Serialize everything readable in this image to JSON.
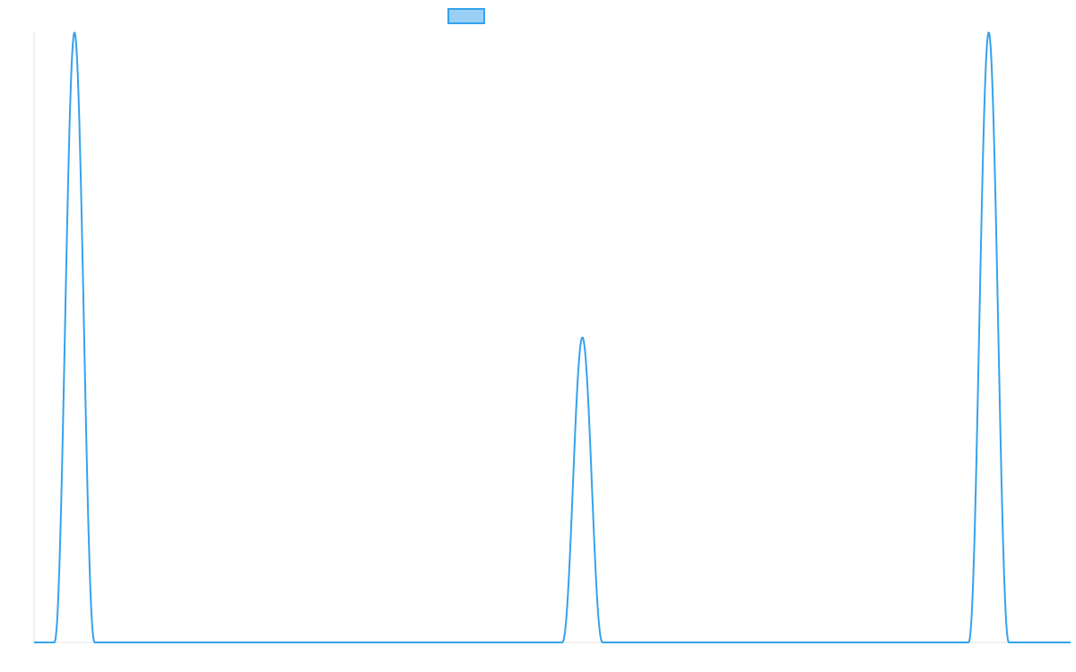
{
  "chart_data": {
    "type": "line",
    "title": "",
    "xlabel": "",
    "ylabel": "",
    "grid": false,
    "legend": {
      "position": "top-center",
      "label": ""
    },
    "xlim": [
      0,
      1
    ],
    "ylim": [
      0,
      1
    ],
    "series": [
      {
        "color": "#36a2eb",
        "fill": "#9ad0f5",
        "peaks": [
          {
            "center": 0.039,
            "height": 1.0,
            "half_width": 0.0195
          },
          {
            "center": 0.529,
            "height": 0.5,
            "half_width": 0.0195
          },
          {
            "center": 0.921,
            "height": 1.0,
            "half_width": 0.0195
          }
        ]
      }
    ]
  }
}
